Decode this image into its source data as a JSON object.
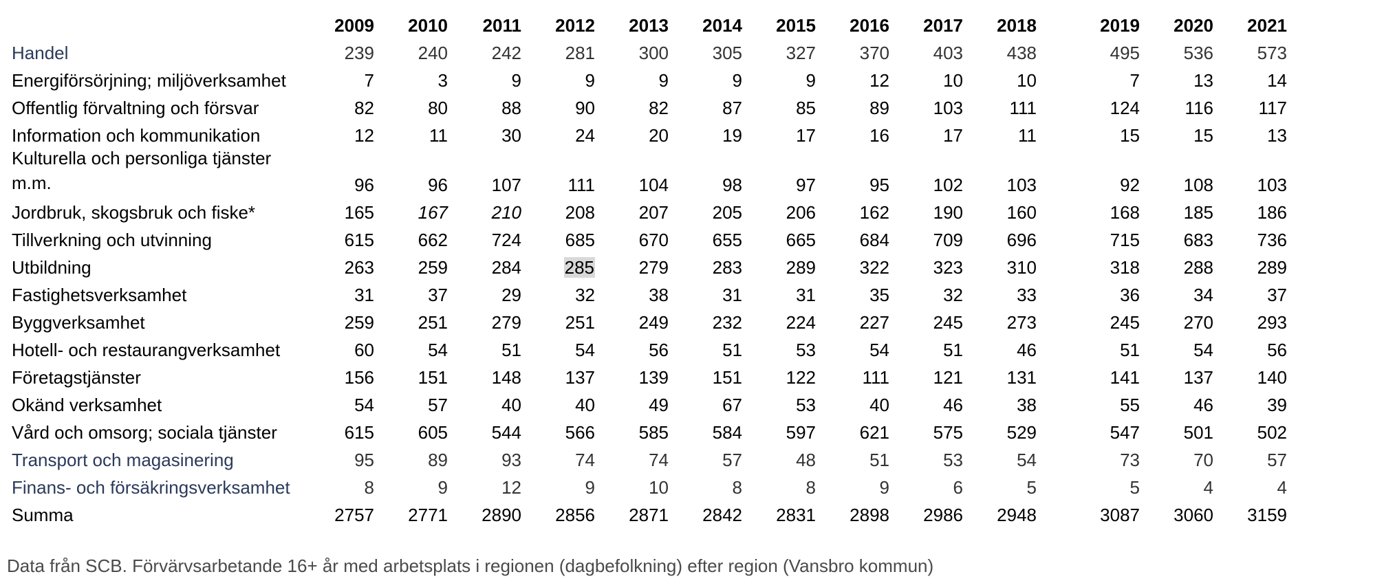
{
  "table": {
    "years": [
      "2009",
      "2010",
      "2011",
      "2012",
      "2013",
      "2014",
      "2015",
      "2016",
      "2017",
      "2018",
      "2019",
      "2020",
      "2021"
    ],
    "rows": [
      {
        "label": "Handel",
        "values": [
          "239",
          "240",
          "242",
          "281",
          "300",
          "305",
          "327",
          "370",
          "403",
          "438",
          "495",
          "536",
          "573"
        ]
      },
      {
        "label": "Energiförsörjning; miljöverksamhet",
        "values": [
          "7",
          "3",
          "9",
          "9",
          "9",
          "9",
          "9",
          "12",
          "10",
          "10",
          "7",
          "13",
          "14"
        ]
      },
      {
        "label": "Offentlig förvaltning och försvar",
        "values": [
          "82",
          "80",
          "88",
          "90",
          "82",
          "87",
          "85",
          "89",
          "103",
          "111",
          "124",
          "116",
          "117"
        ]
      },
      {
        "label": "Information och kommunikation",
        "values": [
          "12",
          "11",
          "30",
          "24",
          "20",
          "19",
          "17",
          "16",
          "17",
          "11",
          "15",
          "15",
          "13"
        ]
      },
      {
        "label": "Kulturella och personliga tjänster m.m.",
        "values": [
          "96",
          "96",
          "107",
          "111",
          "104",
          "98",
          "97",
          "95",
          "102",
          "103",
          "92",
          "108",
          "103"
        ]
      },
      {
        "label": "Jordbruk, skogsbruk och fiske*",
        "values": [
          "165",
          "167",
          "210",
          "208",
          "207",
          "205",
          "206",
          "162",
          "190",
          "160",
          "168",
          "185",
          "186"
        ]
      },
      {
        "label": "Tillverkning och utvinning",
        "values": [
          "615",
          "662",
          "724",
          "685",
          "670",
          "655",
          "665",
          "684",
          "709",
          "696",
          "715",
          "683",
          "736"
        ]
      },
      {
        "label": "Utbildning",
        "values": [
          "263",
          "259",
          "284",
          "285",
          "279",
          "283",
          "289",
          "322",
          "323",
          "310",
          "318",
          "288",
          "289"
        ]
      },
      {
        "label": "Fastighetsverksamhet",
        "values": [
          "31",
          "37",
          "29",
          "32",
          "38",
          "31",
          "31",
          "35",
          "32",
          "33",
          "36",
          "34",
          "37"
        ]
      },
      {
        "label": "Byggverksamhet",
        "values": [
          "259",
          "251",
          "279",
          "251",
          "249",
          "232",
          "224",
          "227",
          "245",
          "273",
          "245",
          "270",
          "293"
        ]
      },
      {
        "label": "Hotell- och restaurangverksamhet",
        "values": [
          "60",
          "54",
          "51",
          "54",
          "56",
          "51",
          "53",
          "54",
          "51",
          "46",
          "51",
          "54",
          "56"
        ]
      },
      {
        "label": "Företagstjänster",
        "values": [
          "156",
          "151",
          "148",
          "137",
          "139",
          "151",
          "122",
          "111",
          "121",
          "131",
          "141",
          "137",
          "140"
        ]
      },
      {
        "label": "Okänd verksamhet",
        "values": [
          "54",
          "57",
          "40",
          "40",
          "49",
          "67",
          "53",
          "40",
          "46",
          "38",
          "55",
          "46",
          "39"
        ]
      },
      {
        "label": "Vård och omsorg; sociala tjänster",
        "values": [
          "615",
          "605",
          "544",
          "566",
          "585",
          "584",
          "597",
          "621",
          "575",
          "529",
          "547",
          "501",
          "502"
        ]
      },
      {
        "label": "Transport och magasinering",
        "values": [
          "95",
          "89",
          "93",
          "74",
          "74",
          "57",
          "48",
          "51",
          "53",
          "54",
          "73",
          "70",
          "57"
        ]
      },
      {
        "label": "Finans- och försäkringsverksamhet",
        "values": [
          "8",
          "9",
          "12",
          "9",
          "10",
          "8",
          "8",
          "9",
          "6",
          "5",
          "5",
          "4",
          "4"
        ]
      },
      {
        "label": "Summa",
        "values": [
          "2757",
          "2771",
          "2890",
          "2856",
          "2871",
          "2842",
          "2831",
          "2898",
          "2986",
          "2948",
          "3087",
          "3060",
          "3159"
        ]
      }
    ]
  },
  "footer": {
    "source_note": "Data från SCB. Förvärvsarbetande 16+ år med arbetsplats i regionen (dagbefolkning) efter region (Vansbro kommun)"
  }
}
